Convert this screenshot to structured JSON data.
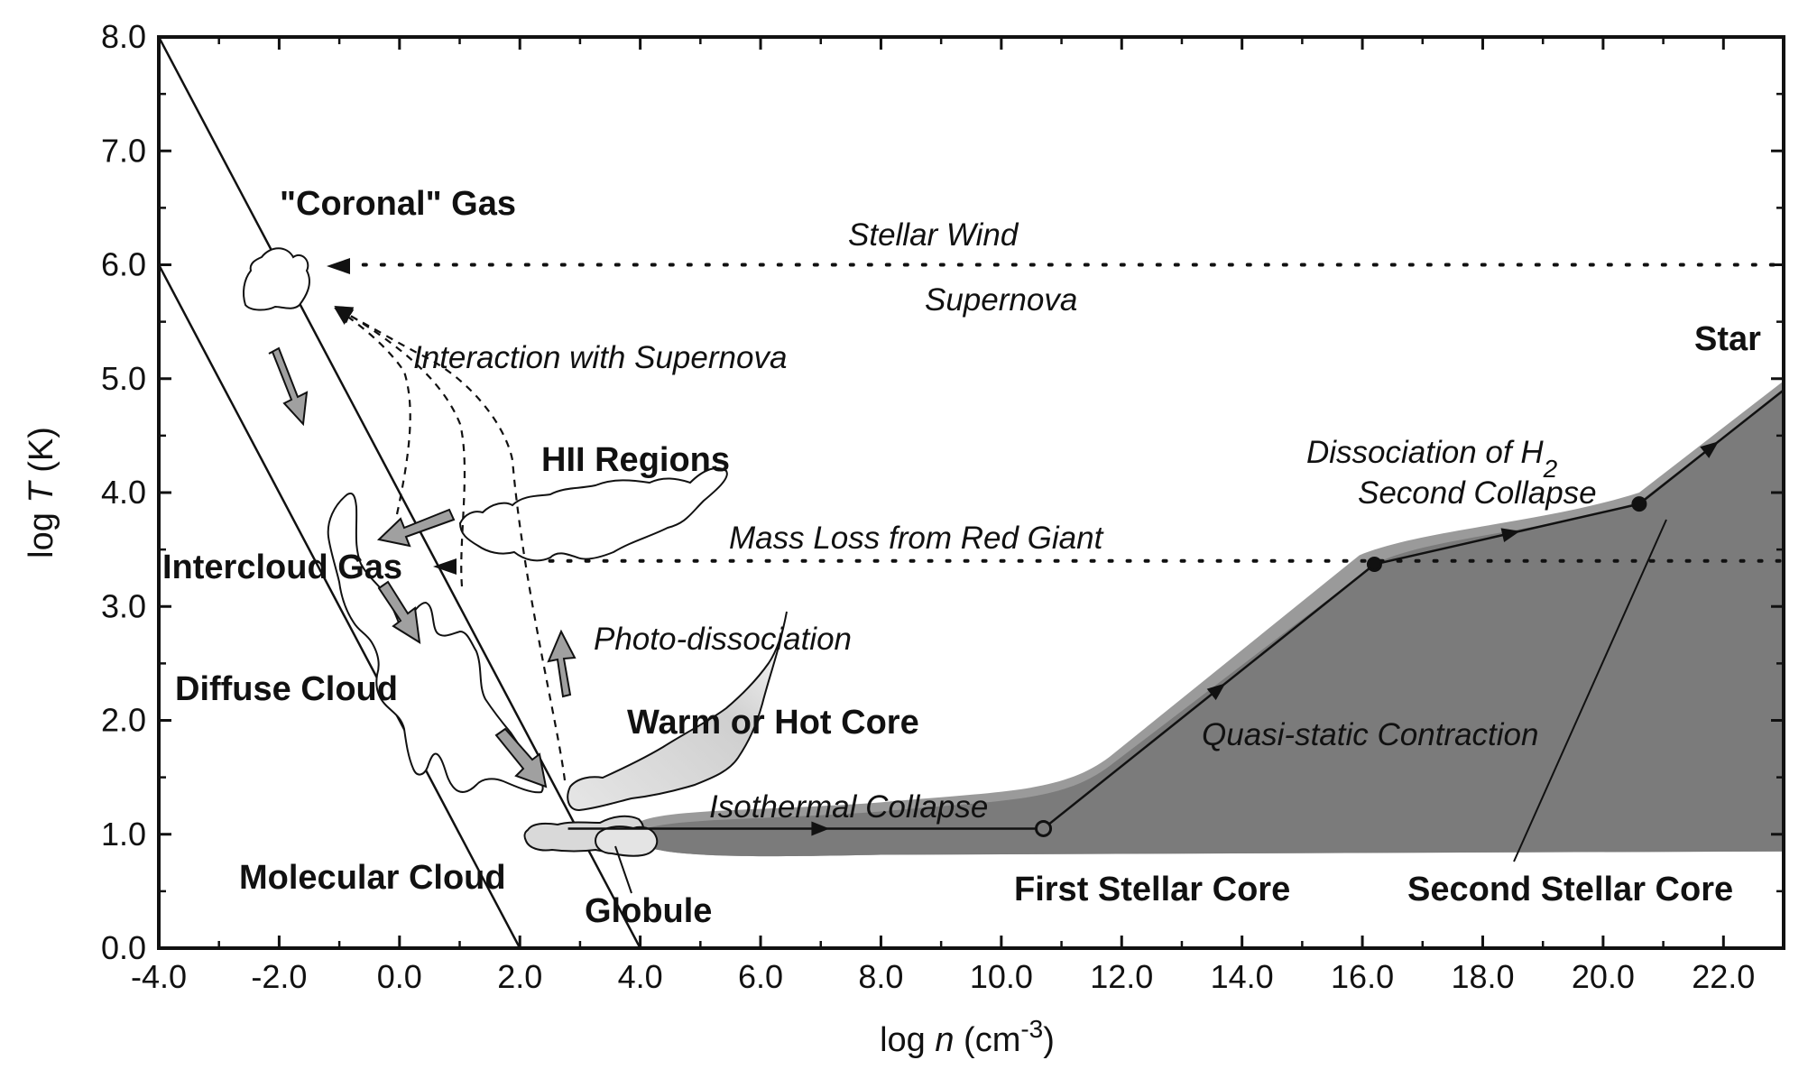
{
  "colors": {
    "ink": "#111111",
    "stellar_region": "#7a7a7a",
    "stellar_region_edge": "#8f8f8f",
    "light_cloud_fill": "#d9d9d9",
    "arrow_fill": "#a0a0a0",
    "background": "#ffffff"
  },
  "axes": {
    "x_label_prefix": "log ",
    "x_label_var": "n",
    "x_label_unit": " (cm",
    "x_label_exp": "-3",
    "x_label_close": ")",
    "y_label_prefix": "log ",
    "y_label_var": "T",
    "y_label_unit": " (K)",
    "xlim": [
      -4.0,
      23.0
    ],
    "ylim": [
      0.0,
      8.0
    ],
    "x_ticks": [
      "-4.0",
      "-2.0",
      "0.0",
      "2.0",
      "4.0",
      "6.0",
      "8.0",
      "10.0",
      "12.0",
      "14.0",
      "16.0",
      "18.0",
      "20.0",
      "22.0"
    ],
    "y_ticks": [
      "0.0",
      "1.0",
      "2.0",
      "3.0",
      "4.0",
      "5.0",
      "6.0",
      "7.0",
      "8.0"
    ]
  },
  "labels": {
    "coronal_gas": "\"Coronal\" Gas",
    "stellar_wind": "Stellar Wind",
    "supernova": "Supernova",
    "interaction": "Interaction with Supernova",
    "star": "Star",
    "hii_regions": "HII Regions",
    "dissociation_prefix": "Dissociation of H",
    "dissociation_sub": "2",
    "second_collapse": "Second Collapse",
    "mass_loss": "Mass Loss from Red Giant",
    "intercloud_gas": "Intercloud Gas",
    "photo_dissociation": "Photo-dissociation",
    "diffuse_cloud": "Diffuse Cloud",
    "warm_hot_core": "Warm or Hot Core",
    "quasi_static": "Quasi-static Contraction",
    "isothermal_collapse": "Isothermal Collapse",
    "molecular_cloud": "Molecular Cloud",
    "globule": "Globule",
    "first_stellar_core": "First Stellar Core",
    "second_stellar_core": "Second Stellar Core"
  },
  "evolution_track": {
    "points": [
      {
        "log_n": 2.8,
        "log_T": 1.05
      },
      {
        "log_n": 10.7,
        "log_T": 1.05
      },
      {
        "log_n": 16.2,
        "log_T": 3.37
      },
      {
        "log_n": 20.6,
        "log_T": 3.9
      },
      {
        "log_n": 23.0,
        "log_T": 4.9
      }
    ],
    "markers": [
      {
        "log_n": 10.7,
        "log_T": 1.05,
        "style": "open"
      },
      {
        "log_n": 16.2,
        "log_T": 3.37,
        "style": "filled"
      },
      {
        "log_n": 20.6,
        "log_T": 3.9,
        "style": "filled"
      }
    ]
  },
  "reference_lines": {
    "stellar_wind_log_T": 6.0,
    "mass_loss_log_T": 3.4
  }
}
